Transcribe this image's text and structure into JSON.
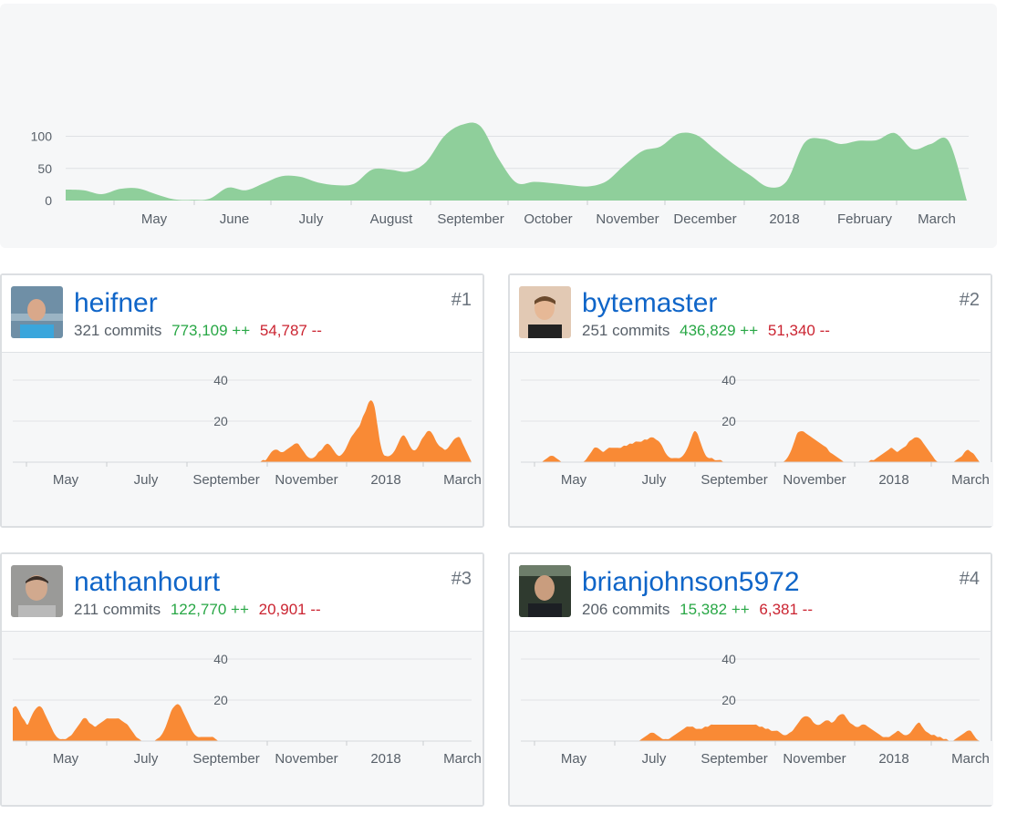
{
  "main_chart": {
    "y_ticks": [
      "100",
      "50",
      "0"
    ],
    "x_ticks": [
      "May",
      "June",
      "July",
      "August",
      "September",
      "October",
      "November",
      "December",
      "2018",
      "February",
      "March"
    ],
    "color": "#8fcf9b"
  },
  "contributors": [
    {
      "name": "heifner",
      "rank": "#1",
      "commits": "321 commits",
      "additions": "773,109 ++",
      "deletions": "54,787 --",
      "avatar": "person-photo-blue-shirt"
    },
    {
      "name": "bytemaster",
      "rank": "#2",
      "commits": "251 commits",
      "additions": "436,829 ++",
      "deletions": "51,340 --",
      "avatar": "person-photo-dark-shirt"
    },
    {
      "name": "nathanhourt",
      "rank": "#3",
      "commits": "211 commits",
      "additions": "122,770 ++",
      "deletions": "20,901 --",
      "avatar": "person-photo-grey-shirt"
    },
    {
      "name": "brianjohnson5972",
      "rank": "#4",
      "commits": "206 commits",
      "additions": "15,382 ++",
      "deletions": "6,381 --",
      "avatar": "person-photo-dark-background"
    }
  ],
  "small_chart": {
    "y_ticks": [
      "40",
      "20"
    ],
    "x_ticks": [
      "May",
      "July",
      "September",
      "November",
      "2018",
      "March"
    ],
    "color": "#f98a35"
  },
  "chart_data": [
    {
      "type": "area",
      "title": "",
      "xlabel": "",
      "ylabel": "",
      "ylim": [
        0,
        100
      ],
      "grid": true,
      "x": [
        0,
        1,
        2,
        3,
        4,
        5,
        6,
        7,
        8,
        9,
        10,
        11,
        12,
        13,
        14,
        15,
        16,
        17,
        18,
        19,
        20,
        21,
        22,
        23,
        24,
        25,
        26,
        27,
        28,
        29,
        30,
        31,
        32,
        33,
        34,
        35,
        36,
        37,
        38,
        39,
        40,
        41,
        42,
        43,
        44,
        45,
        46,
        47,
        48,
        49,
        50
      ],
      "x_ticks": [
        "May",
        "June",
        "July",
        "August",
        "September",
        "October",
        "November",
        "December",
        "2018",
        "February",
        "March"
      ],
      "values": [
        17,
        16,
        10,
        18,
        19,
        10,
        2,
        1,
        3,
        20,
        16,
        27,
        38,
        37,
        28,
        24,
        26,
        48,
        48,
        45,
        60,
        100,
        118,
        116,
        66,
        28,
        29,
        27,
        24,
        22,
        30,
        55,
        77,
        84,
        104,
        102,
        80,
        58,
        39,
        21,
        30,
        90,
        96,
        88,
        93,
        94,
        105,
        80,
        88,
        92,
        0
      ]
    }
  ],
  "contributor_series": [
    [
      0,
      0,
      0,
      0,
      0,
      0,
      0,
      0,
      0,
      0,
      0,
      0,
      0,
      0,
      0,
      0,
      0,
      0,
      0,
      0,
      0,
      0,
      0,
      0,
      0,
      0,
      0,
      0,
      0,
      0,
      0,
      0,
      0,
      0,
      0,
      0,
      0,
      0,
      0,
      0,
      0,
      0,
      0,
      0,
      0,
      0,
      0,
      0,
      0,
      0,
      0,
      0,
      0,
      0,
      0,
      0,
      0,
      0,
      0,
      0,
      0,
      0,
      0,
      0,
      0,
      0,
      0,
      0,
      0,
      0,
      0,
      0,
      0,
      0,
      0,
      0,
      0,
      0,
      0,
      0,
      0,
      0,
      0,
      0,
      0,
      1,
      1,
      3,
      5,
      6,
      6,
      5,
      5,
      6,
      7,
      8,
      9,
      9,
      7,
      5,
      3,
      2,
      2,
      3,
      5,
      6,
      8,
      9,
      8,
      6,
      4,
      3,
      4,
      6,
      9,
      12,
      14,
      16,
      18,
      22,
      25,
      29,
      30,
      27,
      18,
      9,
      4,
      3,
      3,
      4,
      6,
      9,
      12,
      13,
      11,
      8,
      6,
      6,
      8,
      11,
      13,
      15,
      15,
      13,
      10,
      8,
      7,
      6,
      7,
      9,
      11,
      12,
      12,
      9,
      6,
      3,
      0
    ],
    [
      0,
      0,
      0,
      0,
      0,
      0,
      0,
      0,
      1,
      2,
      3,
      3,
      2,
      1,
      0,
      0,
      0,
      0,
      0,
      0,
      0,
      0,
      1,
      3,
      5,
      7,
      7,
      6,
      5,
      6,
      7,
      7,
      7,
      7,
      7,
      8,
      8,
      9,
      9,
      10,
      10,
      10,
      11,
      11,
      12,
      12,
      11,
      10,
      8,
      5,
      3,
      2,
      2,
      2,
      2,
      3,
      5,
      8,
      12,
      15,
      14,
      10,
      6,
      3,
      2,
      2,
      1,
      1,
      1,
      0,
      0,
      0,
      0,
      0,
      0,
      0,
      0,
      0,
      0,
      0,
      0,
      0,
      0,
      0,
      0,
      0,
      0,
      0,
      0,
      0,
      1,
      3,
      6,
      10,
      14,
      15,
      15,
      14,
      13,
      12,
      11,
      10,
      9,
      8,
      7,
      5,
      4,
      3,
      2,
      1,
      0,
      0,
      0,
      0,
      0,
      0,
      0,
      0,
      0,
      1,
      1,
      2,
      3,
      4,
      5,
      6,
      7,
      6,
      5,
      6,
      7,
      8,
      10,
      11,
      12,
      12,
      11,
      9,
      7,
      5,
      3,
      1,
      0,
      0,
      0,
      0,
      0,
      0,
      1,
      2,
      3,
      5,
      6,
      5,
      4,
      2,
      0
    ],
    [
      16,
      17,
      15,
      12,
      10,
      8,
      11,
      14,
      16,
      17,
      16,
      13,
      10,
      7,
      4,
      2,
      1,
      1,
      1,
      2,
      3,
      5,
      7,
      9,
      11,
      11,
      9,
      8,
      7,
      8,
      9,
      10,
      11,
      11,
      11,
      11,
      11,
      10,
      9,
      8,
      6,
      4,
      2,
      1,
      0,
      0,
      0,
      0,
      0,
      1,
      2,
      4,
      7,
      11,
      15,
      17,
      18,
      17,
      14,
      11,
      8,
      5,
      3,
      2,
      2,
      2,
      2,
      2,
      2,
      1,
      0,
      0,
      0,
      0,
      0,
      0,
      0,
      0,
      0,
      0,
      0,
      0,
      0,
      0,
      0,
      0,
      0,
      0,
      0,
      0,
      0,
      0,
      0,
      0,
      0,
      0,
      0,
      0,
      0,
      0,
      0,
      0,
      0,
      0,
      0,
      0,
      0,
      0,
      0,
      0,
      0,
      0,
      0,
      0,
      0,
      0,
      0,
      0,
      0,
      0,
      0,
      0,
      0,
      0,
      0,
      0,
      0,
      0,
      0,
      0,
      0,
      0,
      0,
      0,
      0,
      0,
      0,
      0,
      0,
      0,
      0,
      0,
      0,
      0,
      0,
      0,
      0,
      0,
      0,
      0,
      0,
      0,
      0,
      0,
      0,
      0,
      0
    ],
    [
      0,
      0,
      0,
      0,
      0,
      0,
      0,
      0,
      0,
      0,
      0,
      0,
      0,
      0,
      0,
      0,
      0,
      0,
      0,
      0,
      0,
      0,
      0,
      0,
      0,
      0,
      0,
      0,
      0,
      0,
      0,
      0,
      0,
      0,
      0,
      0,
      0,
      0,
      0,
      0,
      1,
      2,
      3,
      4,
      4,
      3,
      2,
      1,
      1,
      1,
      2,
      3,
      4,
      5,
      6,
      7,
      7,
      7,
      6,
      6,
      6,
      7,
      7,
      8,
      8,
      8,
      8,
      8,
      8,
      8,
      8,
      8,
      8,
      8,
      8,
      8,
      8,
      8,
      8,
      7,
      7,
      6,
      6,
      5,
      5,
      5,
      4,
      3,
      3,
      4,
      5,
      7,
      9,
      11,
      12,
      12,
      11,
      9,
      8,
      8,
      9,
      10,
      10,
      9,
      10,
      12,
      13,
      13,
      11,
      9,
      8,
      7,
      7,
      8,
      8,
      7,
      6,
      5,
      4,
      3,
      2,
      2,
      2,
      3,
      4,
      5,
      4,
      3,
      3,
      4,
      6,
      8,
      9,
      7,
      5,
      4,
      3,
      3,
      2,
      2,
      1,
      1,
      0,
      0,
      1,
      2,
      3,
      4,
      5,
      5,
      3,
      1,
      0
    ]
  ]
}
